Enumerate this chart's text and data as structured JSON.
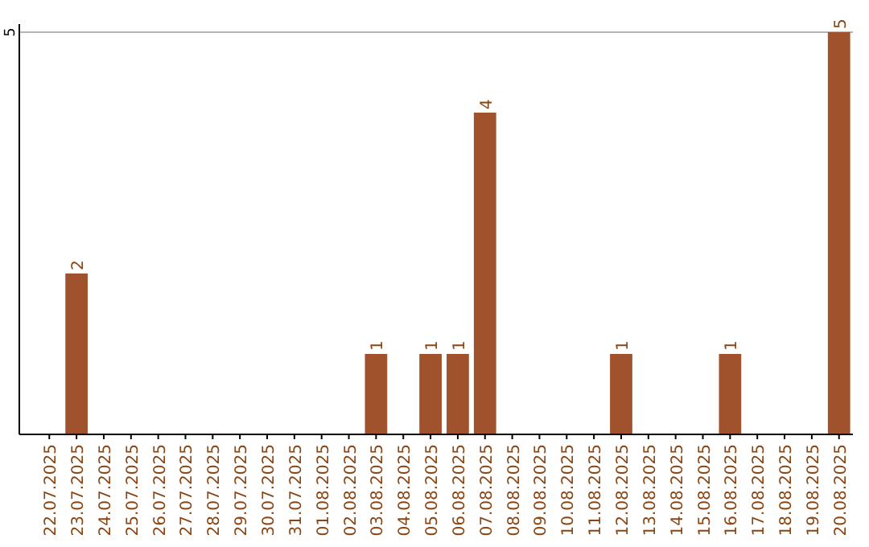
{
  "chart_data": {
    "type": "bar",
    "categories": [
      "22.07.2025",
      "23.07.2025",
      "24.07.2025",
      "25.07.2025",
      "26.07.2025",
      "27.07.2025",
      "28.07.2025",
      "29.07.2025",
      "30.07.2025",
      "31.07.2025",
      "01.08.2025",
      "02.08.2025",
      "03.08.2025",
      "04.08.2025",
      "05.08.2025",
      "06.08.2025",
      "07.08.2025",
      "08.08.2025",
      "09.08.2025",
      "10.08.2025",
      "11.08.2025",
      "12.08.2025",
      "13.08.2025",
      "14.08.2025",
      "15.08.2025",
      "16.08.2025",
      "17.08.2025",
      "18.08.2025",
      "19.08.2025",
      "20.08.2025"
    ],
    "values": [
      0,
      2,
      0,
      0,
      0,
      0,
      0,
      0,
      0,
      0,
      0,
      0,
      1,
      0,
      1,
      1,
      4,
      0,
      0,
      0,
      0,
      1,
      0,
      0,
      0,
      1,
      0,
      0,
      0,
      5
    ],
    "value_labels": [
      null,
      "2",
      null,
      null,
      null,
      null,
      null,
      null,
      null,
      null,
      null,
      null,
      "1",
      null,
      "1",
      "1",
      "4",
      null,
      null,
      null,
      null,
      "1",
      null,
      null,
      null,
      "1",
      null,
      null,
      null,
      "5"
    ],
    "color": "#a0522d",
    "ylim": [
      0,
      5.1
    ],
    "yticks": [
      5
    ],
    "grid": "y"
  }
}
